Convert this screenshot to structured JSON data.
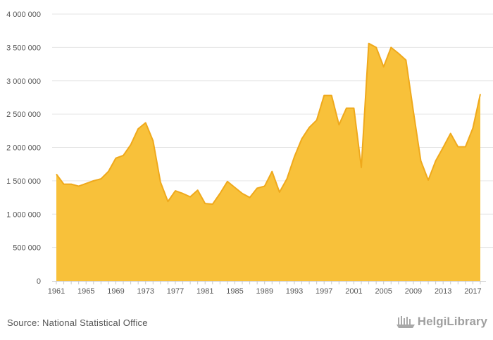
{
  "chart_data": {
    "type": "area",
    "x": [
      1961,
      1962,
      1963,
      1964,
      1965,
      1966,
      1967,
      1968,
      1969,
      1970,
      1971,
      1972,
      1973,
      1974,
      1975,
      1976,
      1977,
      1978,
      1979,
      1980,
      1981,
      1982,
      1983,
      1984,
      1985,
      1986,
      1987,
      1988,
      1989,
      1990,
      1991,
      1992,
      1993,
      1994,
      1995,
      1996,
      1997,
      1998,
      1999,
      2000,
      2001,
      2002,
      2003,
      2004,
      2005,
      2006,
      2007,
      2008,
      2009,
      2010,
      2011,
      2012,
      2013,
      2014,
      2015,
      2016,
      2017,
      2018
    ],
    "series": [
      {
        "values": [
          1600000,
          1450000,
          1450000,
          1420000,
          1460000,
          1500000,
          1530000,
          1640000,
          1840000,
          1880000,
          2040000,
          2280000,
          2370000,
          2100000,
          1480000,
          1190000,
          1350000,
          1310000,
          1260000,
          1360000,
          1160000,
          1150000,
          1310000,
          1490000,
          1400000,
          1310000,
          1250000,
          1390000,
          1420000,
          1640000,
          1330000,
          1530000,
          1860000,
          2130000,
          2300000,
          2410000,
          2780000,
          2780000,
          2340000,
          2590000,
          2590000,
          1700000,
          3560000,
          3500000,
          3210000,
          3500000,
          3410000,
          3310000,
          2540000,
          1800000,
          1510000,
          1800000,
          2000000,
          2210000,
          2010000,
          2010000,
          2290000,
          2800000
        ]
      }
    ],
    "ylim": [
      0,
      4000000
    ],
    "x_ticks": [
      "1961",
      "1965",
      "1969",
      "1973",
      "1977",
      "1981",
      "1985",
      "1989",
      "1993",
      "1997",
      "2001",
      "2005",
      "2009",
      "2013",
      "2017"
    ],
    "y_ticks": [
      "0",
      "500 000",
      "1 000 000",
      "1 500 000",
      "2 000 000",
      "2 500 000",
      "3 000 000",
      "3 500 000",
      "4 000 000"
    ],
    "grid": true,
    "colors": {
      "fill": "#f8c13a",
      "line": "#efa91c",
      "grid": "#e6e6e6",
      "axis": "#c8c8c8"
    }
  },
  "footer": {
    "source": "Source: National Statistical Office",
    "brand": "HelgiLibrary"
  }
}
